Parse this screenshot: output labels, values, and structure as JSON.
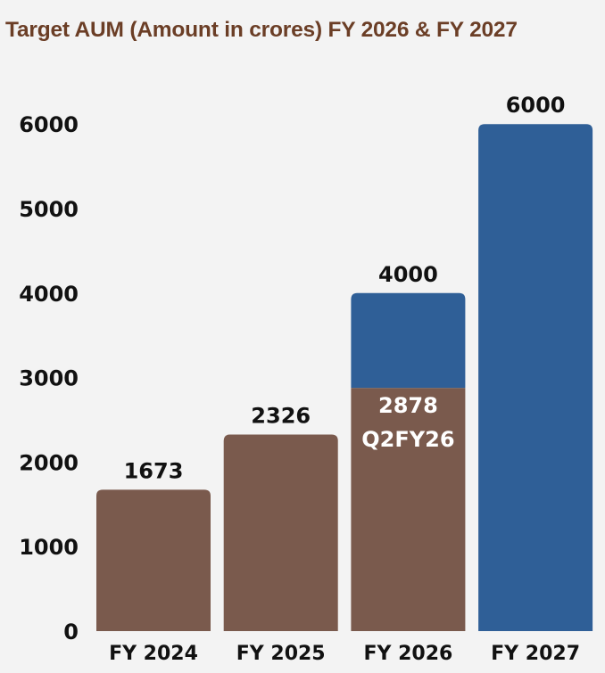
{
  "title": "Target AUM (Amount in crores) FY 2026 & FY 2027",
  "colors": {
    "achieved": "#7a5a4d",
    "target": "#2f5f97",
    "title": "#6b3e26",
    "text": "#111111",
    "segment_label": "#ffffff",
    "background": "#f3f3f3"
  },
  "chart_data": {
    "type": "bar",
    "title": "Target AUM (Amount in crores) FY 2026 & FY 2027",
    "categories": [
      "FY 2024",
      "FY 2025",
      "FY 2026",
      "FY 2027"
    ],
    "series": [
      {
        "values": [
          1673,
          2326,
          2878,
          0
        ],
        "color": "#7a5a4d"
      },
      {
        "values": [
          0,
          0,
          1122,
          6000
        ],
        "color": "#2f5f97"
      }
    ],
    "data_labels": [
      "1673",
      "2326",
      "4000",
      "6000"
    ],
    "segment_label": {
      "category": "FY 2026",
      "lines": [
        "2878",
        "Q2FY26"
      ]
    },
    "stacked": true,
    "y_ticks": [
      0,
      1000,
      2000,
      3000,
      4000,
      5000,
      6000
    ],
    "ylim": [
      0,
      6000
    ],
    "xlabel": "",
    "ylabel": "",
    "grid": false,
    "legend": "none"
  }
}
